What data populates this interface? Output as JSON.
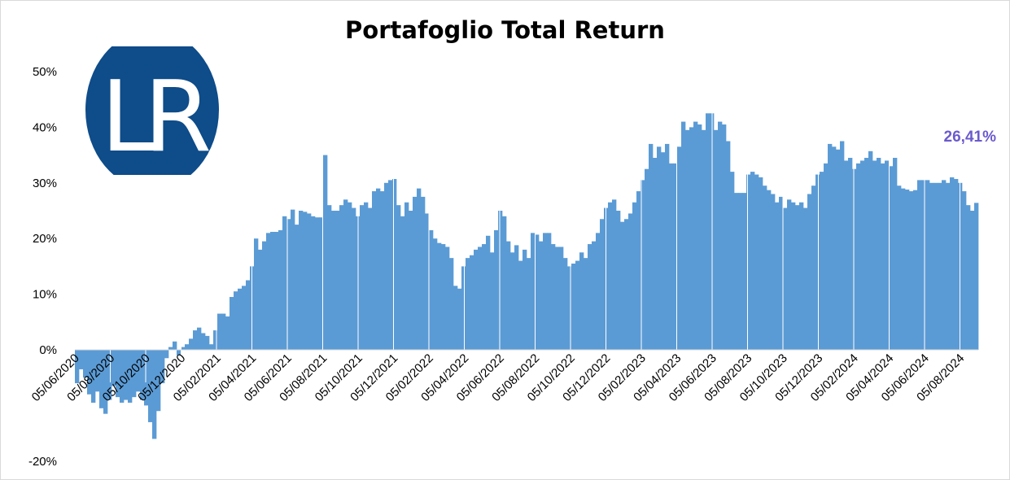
{
  "colors": {
    "bar": "#5b9bd5",
    "last_label": "#6a5acd",
    "logo_bg": "#0e4c8a",
    "logo_fg": "#ffffff"
  },
  "logo": {
    "text": "LR"
  },
  "chart_data": {
    "type": "bar",
    "title": "Portafoglio Total Return",
    "xlabel": "",
    "ylabel": "",
    "ylim": [
      -20,
      50
    ],
    "y_ticks": [
      -20,
      0,
      10,
      20,
      30,
      40,
      50
    ],
    "y_tick_labels": [
      "-20%",
      "0%",
      "10%",
      "20%",
      "30%",
      "40%",
      "50%"
    ],
    "x_tick_labels": [
      "05/06/2020",
      "05/08/2020",
      "05/10/2020",
      "05/12/2020",
      "05/02/2021",
      "05/04/2021",
      "05/06/2021",
      "05/08/2021",
      "05/10/2021",
      "05/12/2021",
      "05/02/2022",
      "05/04/2022",
      "05/06/2022",
      "05/08/2022",
      "05/10/2022",
      "05/12/2022",
      "05/02/2023",
      "05/04/2023",
      "05/06/2023",
      "05/08/2023",
      "05/10/2023",
      "05/12/2023",
      "05/02/2024",
      "05/04/2024",
      "05/06/2024",
      "05/08/2024"
    ],
    "weeks_per_tick": 8.7,
    "grid": false,
    "last_value_label": "26,41%",
    "values": [
      -6.0,
      -3.5,
      -5.0,
      -8.0,
      -9.5,
      -7.5,
      -10.5,
      -11.5,
      -9.0,
      -6.5,
      -8.5,
      -9.5,
      -9.0,
      -9.5,
      -8.5,
      -7.5,
      -9.0,
      -10.0,
      -13.0,
      -16.0,
      -11.0,
      -6.0,
      -1.5,
      0.5,
      1.5,
      -1.0,
      0.5,
      1.0,
      2.0,
      3.5,
      4.0,
      3.0,
      2.5,
      1.0,
      3.5,
      6.5,
      6.5,
      6.0,
      9.5,
      10.5,
      11.0,
      11.5,
      12.5,
      15.0,
      20.0,
      18.0,
      19.5,
      21.0,
      21.2,
      21.2,
      21.5,
      24.0,
      23.5,
      25.2,
      22.5,
      25.0,
      24.8,
      24.5,
      24.0,
      23.8,
      23.8,
      35.0,
      26.0,
      25.0,
      25.0,
      26.0,
      27.0,
      26.5,
      25.5,
      24.0,
      26.0,
      26.5,
      25.5,
      28.5,
      29.0,
      28.5,
      30.0,
      30.5,
      30.7,
      26.0,
      24.0,
      26.5,
      25.0,
      27.5,
      29.0,
      27.5,
      24.5,
      21.5,
      20.0,
      19.2,
      19.0,
      18.5,
      16.5,
      11.5,
      11.0,
      15.0,
      16.5,
      17.0,
      18.0,
      18.5,
      19.0,
      20.5,
      17.5,
      21.5,
      25.0,
      24.0,
      19.5,
      17.5,
      18.8,
      16.0,
      18.0,
      16.5,
      21.0,
      20.7,
      19.5,
      21.0,
      21.0,
      19.0,
      18.5,
      18.5,
      16.5,
      15.0,
      15.5,
      16.0,
      17.5,
      16.5,
      19.0,
      19.5,
      21.0,
      23.5,
      25.5,
      26.5,
      27.0,
      25.0,
      23.0,
      23.5,
      24.5,
      26.5,
      28.5,
      30.5,
      32.5,
      37.0,
      34.5,
      36.5,
      35.5,
      37.0,
      33.5,
      33.5,
      36.5,
      41.0,
      39.5,
      40.0,
      41.0,
      40.5,
      39.5,
      42.5,
      42.5,
      39.5,
      41.0,
      40.5,
      37.5,
      32.0,
      28.2,
      28.2,
      28.2,
      31.5,
      32.0,
      31.5,
      31.0,
      29.5,
      28.7,
      28.0,
      26.5,
      27.5,
      25.5,
      27.0,
      26.5,
      26.0,
      26.5,
      25.5,
      28.0,
      29.5,
      31.5,
      32.0,
      33.5,
      37.0,
      36.5,
      36.0,
      37.5,
      34.0,
      34.5,
      32.5,
      33.5,
      34.0,
      34.5,
      35.7,
      34.0,
      34.5,
      33.5,
      34.0,
      33.0,
      34.5,
      29.5,
      29.0,
      28.8,
      28.5,
      28.7,
      30.5,
      30.5,
      30.5,
      30.0,
      30.0,
      30.0,
      30.5,
      30.0,
      31.0,
      30.7,
      30.0,
      28.5,
      26.0,
      25.0,
      26.41
    ]
  }
}
